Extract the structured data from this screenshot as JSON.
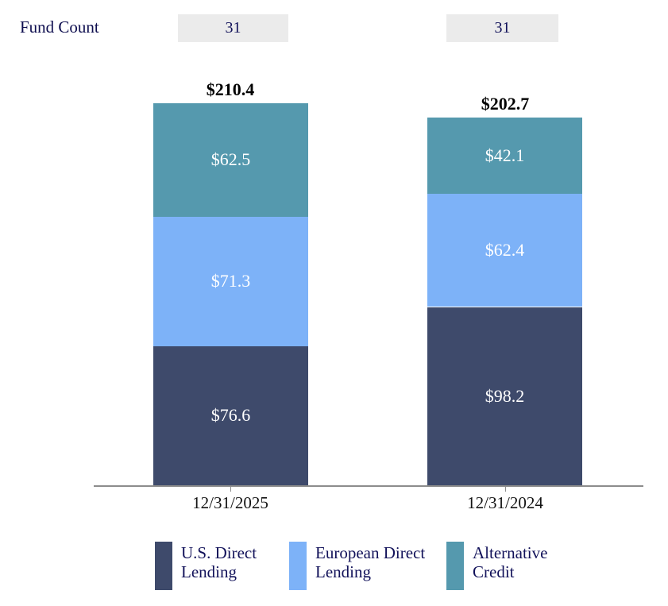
{
  "header": {
    "label": "Fund Count",
    "counts": [
      "31",
      "31"
    ]
  },
  "chart_data": {
    "type": "bar",
    "stacked": true,
    "title": "",
    "xlabel": "",
    "ylabel": "",
    "categories": [
      "12/31/2025",
      "12/31/2024"
    ],
    "series": [
      {
        "name": "U.S. Direct Lending",
        "color": "#3E4A6B",
        "values": [
          76.6,
          98.2
        ],
        "labels": [
          "$76.6",
          "$98.2"
        ]
      },
      {
        "name": "European Direct Lending",
        "color": "#7DB2F8",
        "values": [
          71.3,
          62.4
        ],
        "labels": [
          "$71.3",
          "$62.4"
        ]
      },
      {
        "name": "Alternative Credit",
        "color": "#5599AE",
        "values": [
          62.5,
          42.1
        ],
        "labels": [
          "$62.5",
          "$42.1"
        ]
      }
    ],
    "totals": {
      "values": [
        210.4,
        202.7
      ],
      "labels": [
        "$210.4",
        "$202.7"
      ]
    },
    "fund_counts": [
      "31",
      "31"
    ],
    "legend_position": "bottom",
    "grid": false,
    "ylim": [
      0,
      220
    ]
  },
  "legend": {
    "entries": [
      {
        "name": "U.S. Direct Lending",
        "lines": [
          "U.S. Direct",
          "Lending"
        ],
        "color": "#3E4A6B"
      },
      {
        "name": "European Direct Lending",
        "lines": [
          "European Direct",
          "Lending"
        ],
        "color": "#7DB2F8"
      },
      {
        "name": "Alternative Credit",
        "lines": [
          "Alternative",
          "Credit"
        ],
        "color": "#5599AE"
      }
    ]
  },
  "colors": {
    "us_direct_lending": "#3E4A6B",
    "european_direct_lending": "#7DB2F8",
    "alternative_credit": "#5599AE",
    "fund_count_box_bg": "#EBEBEB",
    "axis": "#8C8C8C",
    "navy_text": "#12125A",
    "bar_value_text": "#FFFFFF"
  }
}
